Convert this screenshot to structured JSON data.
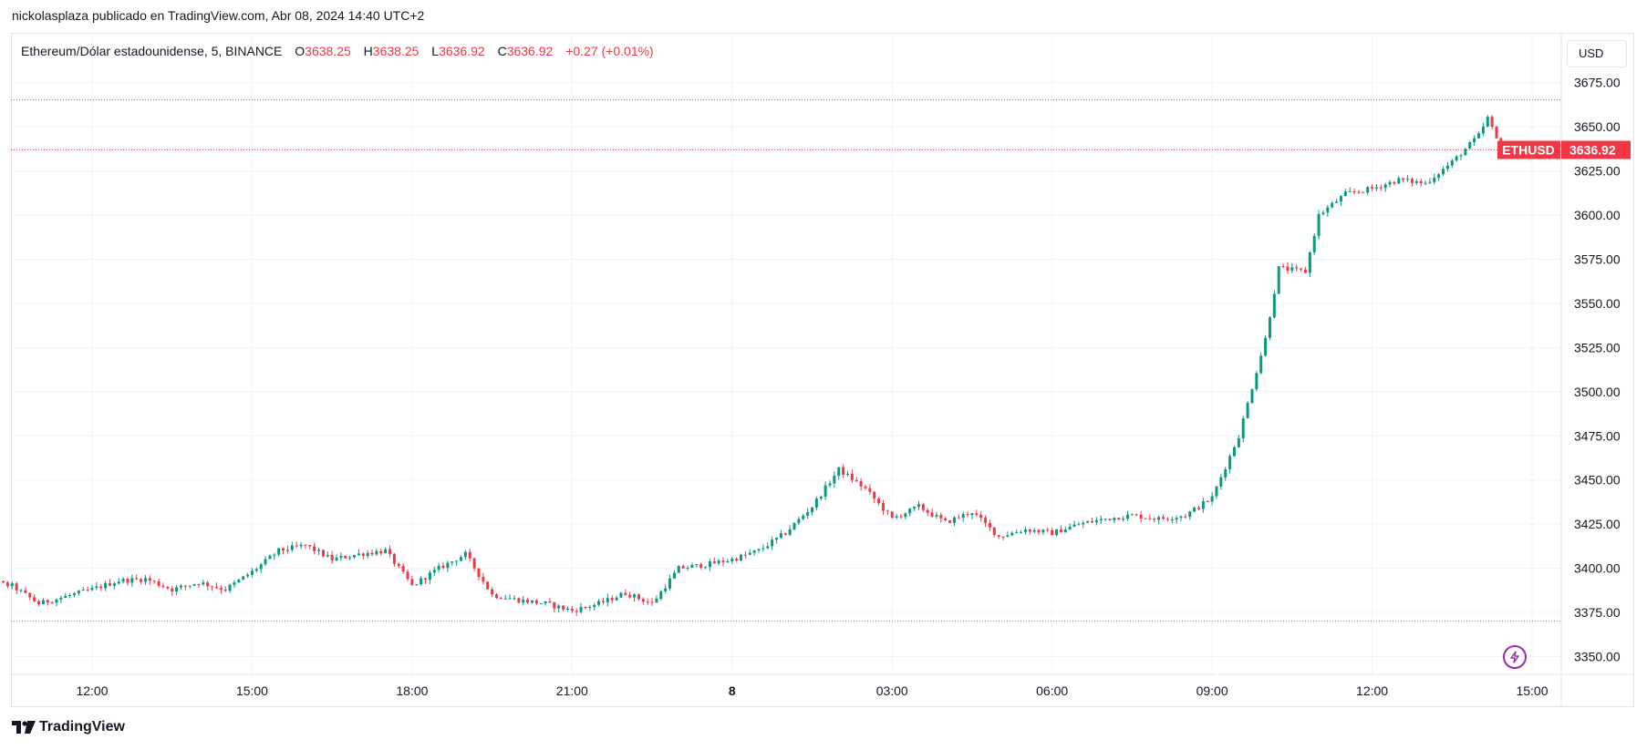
{
  "header": {
    "attribution": "nickolasplaza publicado en TradingView.com, Abr 08, 2024 14:40 UTC+2"
  },
  "legend": {
    "symbol": "Ethereum/Dólar estadounidense, 5, BINANCE",
    "o_label": "O",
    "o_value": "3638.25",
    "h_label": "H",
    "h_value": "3638.25",
    "l_label": "L",
    "l_value": "3636.92",
    "c_label": "C",
    "c_value": "3636.92",
    "change": "+0.27 (+0.01%)"
  },
  "price_scale": {
    "currency": "USD"
  },
  "price_tag": {
    "symbol": "ETHUSD",
    "price": "3636.92"
  },
  "footer": {
    "logo_text": "TradingView"
  },
  "colors": {
    "up": "#089981",
    "down": "#f23645",
    "grid": "#f0f3fa",
    "text": "#131722",
    "accent": "#9c27b0"
  },
  "icons": {
    "lightning": "lightning-icon"
  },
  "chart_data": {
    "type": "candlestick",
    "symbol": "ETHUSD",
    "interval": "5",
    "exchange": "BINANCE",
    "ylim": [
      3340,
      3690
    ],
    "y_ticks": [
      3350,
      3375,
      3400,
      3425,
      3450,
      3475,
      3500,
      3525,
      3550,
      3575,
      3600,
      3625,
      3650,
      3675
    ],
    "y_tick_labels": [
      "3350.00",
      "3375.00",
      "3400.00",
      "3425.00",
      "3450.00",
      "3475.00",
      "3500.00",
      "3525.00",
      "3550.00",
      "3575.00",
      "3600.00",
      "3625.00",
      "3650.00",
      "3675.00"
    ],
    "x_range": [
      "Apr 07 09:30",
      "Apr 08 15:30"
    ],
    "x_ticks": [
      {
        "time": "12:00",
        "label": "12:00",
        "bold": false
      },
      {
        "time": "15:00",
        "label": "15:00",
        "bold": false
      },
      {
        "time": "18:00",
        "label": "18:00",
        "bold": false
      },
      {
        "time": "21:00",
        "label": "21:00",
        "bold": false
      },
      {
        "time": "00:00",
        "label": "8",
        "bold": true
      },
      {
        "time": "03:00",
        "label": "03:00",
        "bold": false
      },
      {
        "time": "06:00",
        "label": "06:00",
        "bold": false
      },
      {
        "time": "09:00",
        "label": "09:00",
        "bold": false
      },
      {
        "time": "12:00",
        "label": "12:00",
        "bold": false
      },
      {
        "time": "15:00",
        "label": "15:00",
        "bold": false
      }
    ],
    "range_high": 3665,
    "range_low": 3370,
    "last_price": 3636.92,
    "close_path": [
      [
        "Apr 07 09:30",
        3390
      ],
      [
        "Apr 07 10:00",
        3393
      ],
      [
        "Apr 07 10:30",
        3390
      ],
      [
        "Apr 07 11:00",
        3380
      ],
      [
        "Apr 07 11:30",
        3384
      ],
      [
        "Apr 07 12:00",
        3388
      ],
      [
        "Apr 07 12:30",
        3393
      ],
      [
        "Apr 07 13:00",
        3394
      ],
      [
        "Apr 07 13:30",
        3388
      ],
      [
        "Apr 07 14:00",
        3392
      ],
      [
        "Apr 07 14:30",
        3388
      ],
      [
        "Apr 07 15:00",
        3398
      ],
      [
        "Apr 07 15:30",
        3410
      ],
      [
        "Apr 07 16:00",
        3413
      ],
      [
        "Apr 07 16:30",
        3405
      ],
      [
        "Apr 07 17:00",
        3408
      ],
      [
        "Apr 07 17:30",
        3410
      ],
      [
        "Apr 07 18:00",
        3390
      ],
      [
        "Apr 07 18:30",
        3400
      ],
      [
        "Apr 07 19:00",
        3408
      ],
      [
        "Apr 07 19:30",
        3385
      ],
      [
        "Apr 07 20:00",
        3382
      ],
      [
        "Apr 07 20:30",
        3380
      ],
      [
        "Apr 07 21:00",
        3376
      ],
      [
        "Apr 07 21:30",
        3380
      ],
      [
        "Apr 07 22:00",
        3386
      ],
      [
        "Apr 07 22:30",
        3380
      ],
      [
        "Apr 07 23:00",
        3400
      ],
      [
        "Apr 07 23:30",
        3402
      ],
      [
        "Apr 08 00:00",
        3405
      ],
      [
        "Apr 08 00:30",
        3410
      ],
      [
        "Apr 08 01:00",
        3420
      ],
      [
        "Apr 08 01:30",
        3435
      ],
      [
        "Apr 08 02:00",
        3456
      ],
      [
        "Apr 08 02:30",
        3445
      ],
      [
        "Apr 08 03:00",
        3428
      ],
      [
        "Apr 08 03:30",
        3435
      ],
      [
        "Apr 08 04:00",
        3426
      ],
      [
        "Apr 08 04:30",
        3432
      ],
      [
        "Apr 08 05:00",
        3418
      ],
      [
        "Apr 08 05:30",
        3422
      ],
      [
        "Apr 08 06:00",
        3420
      ],
      [
        "Apr 08 06:30",
        3425
      ],
      [
        "Apr 08 07:00",
        3428
      ],
      [
        "Apr 08 07:30",
        3430
      ],
      [
        "Apr 08 08:00",
        3428
      ],
      [
        "Apr 08 08:30",
        3430
      ],
      [
        "Apr 08 09:00",
        3440
      ],
      [
        "Apr 08 09:30",
        3475
      ],
      [
        "Apr 08 10:00",
        3530
      ],
      [
        "Apr 08 10:15",
        3570
      ],
      [
        "Apr 08 10:45",
        3568
      ],
      [
        "Apr 08 11:00",
        3600
      ],
      [
        "Apr 08 11:30",
        3612
      ],
      [
        "Apr 08 12:00",
        3615
      ],
      [
        "Apr 08 12:30",
        3620
      ],
      [
        "Apr 08 13:00",
        3618
      ],
      [
        "Apr 08 13:30",
        3630
      ],
      [
        "Apr 08 14:00",
        3645
      ],
      [
        "Apr 08 14:10",
        3655
      ],
      [
        "Apr 08 14:25",
        3637
      ]
    ],
    "xlabel": "",
    "ylabel": "",
    "grid": true
  }
}
